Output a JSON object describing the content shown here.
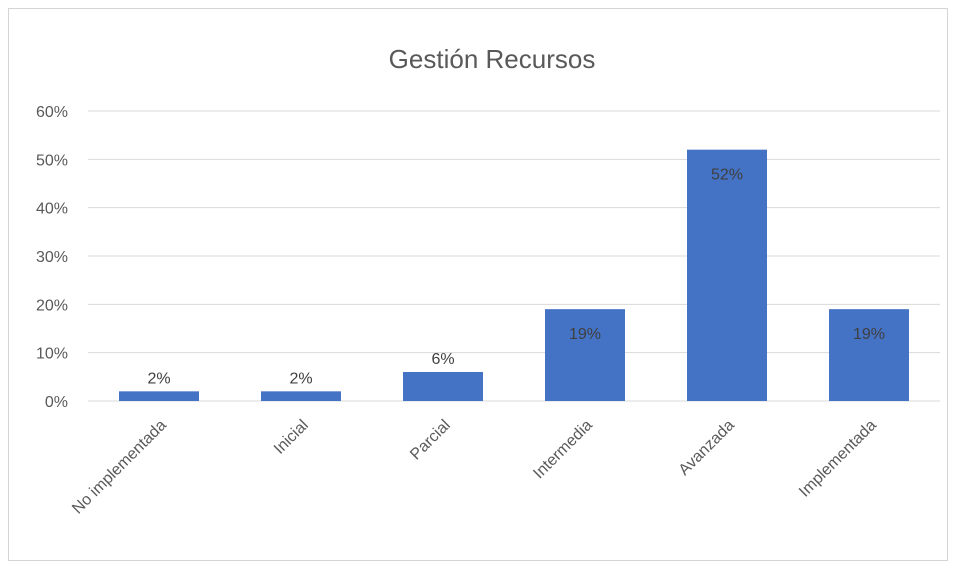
{
  "chart_data": {
    "type": "bar",
    "title": "Gestión Recursos",
    "categories": [
      "No implementada",
      "Inicial",
      "Parcial",
      "Intermedia",
      "Avanzada",
      "Implementada"
    ],
    "values": [
      2,
      2,
      6,
      19,
      52,
      19
    ],
    "data_labels": [
      "2%",
      "2%",
      "6%",
      "19%",
      "52%",
      "19%"
    ],
    "y_ticks": [
      "0%",
      "10%",
      "20%",
      "30%",
      "40%",
      "50%",
      "60%"
    ],
    "ylim": [
      0,
      60
    ],
    "grid": true,
    "bar_color": "#4472c4"
  }
}
